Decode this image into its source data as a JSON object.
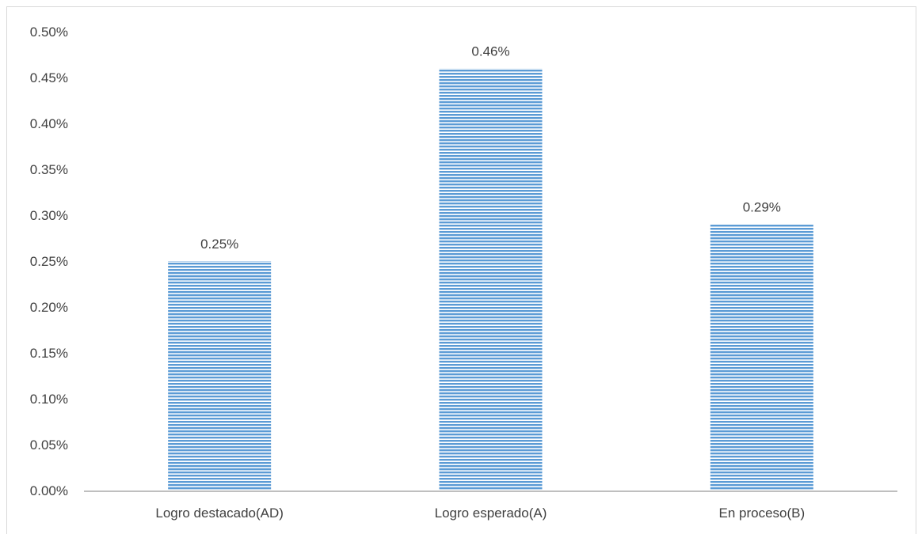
{
  "chart_data": {
    "type": "bar",
    "title": "",
    "xlabel": "",
    "ylabel": "",
    "categories": [
      "Logro destacado(AD)",
      "Logro esperado(A)",
      "En proceso(B)"
    ],
    "values": [
      0.25,
      0.46,
      0.29
    ],
    "data_labels": [
      "0.25%",
      "0.46%",
      "0.29%"
    ],
    "ylim": [
      0,
      0.5
    ],
    "y_ticks": [
      0,
      0.05,
      0.1,
      0.15,
      0.2,
      0.25,
      0.3,
      0.35,
      0.4,
      0.45,
      0.5
    ],
    "y_tick_labels": [
      "0.00%",
      "0.05%",
      "0.10%",
      "0.15%",
      "0.20%",
      "0.25%",
      "0.30%",
      "0.35%",
      "0.40%",
      "0.45%",
      "0.50%"
    ],
    "grid": false,
    "legend": "none",
    "bar_fill_pattern": "horizontal-stripes",
    "colors": {
      "bar_stripe": "#5b9bd5",
      "bar_background": "#ffffff",
      "axis": "#bfbfbf",
      "text": "#404040"
    }
  }
}
